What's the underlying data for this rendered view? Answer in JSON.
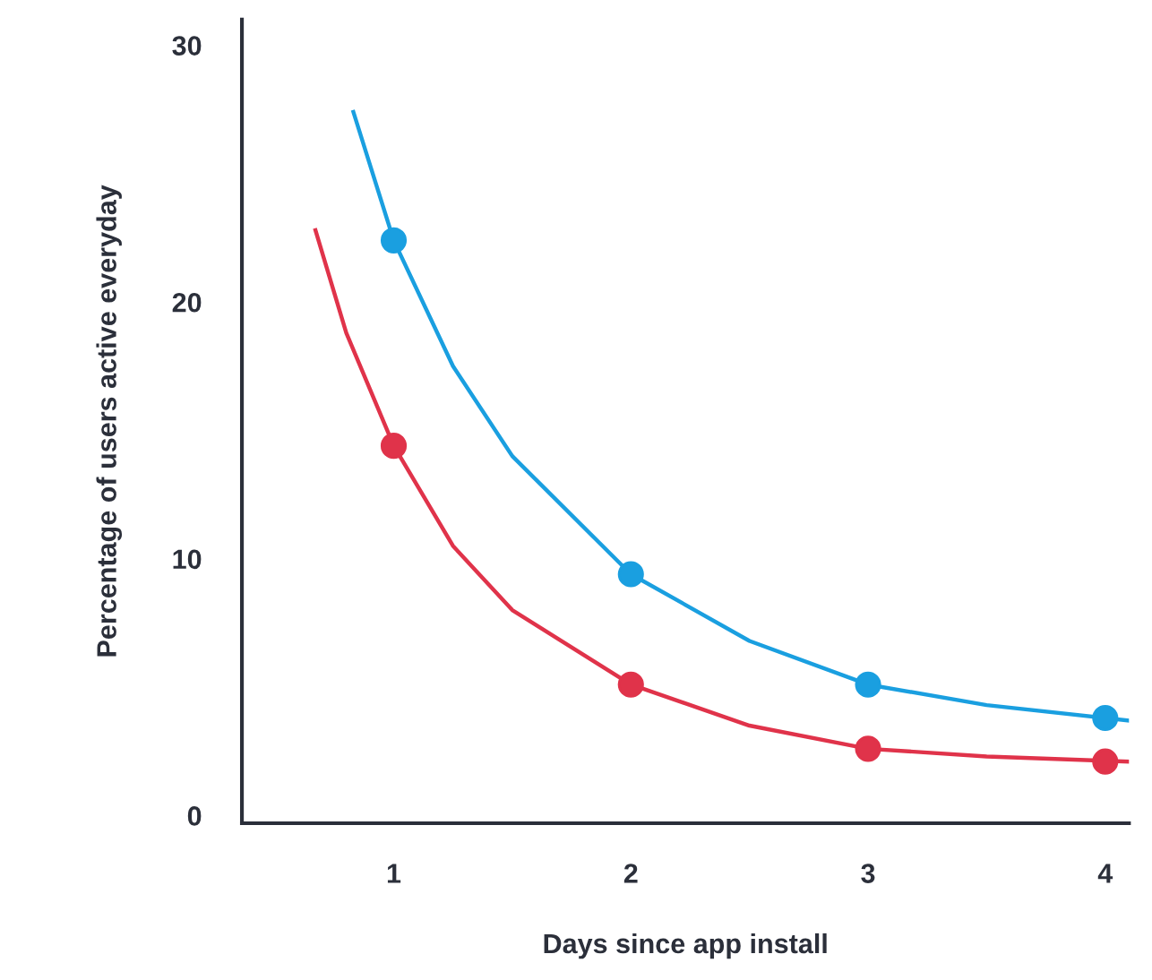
{
  "chart_data": {
    "type": "scatter",
    "xlabel": "Days since app install",
    "ylabel": "Percentage of users active everyday",
    "x": [
      1,
      2,
      3,
      4
    ],
    "xlim": [
      0.36,
      4.1
    ],
    "ylim": [
      -0.3,
      31
    ],
    "xticks": [
      1,
      2,
      3,
      4
    ],
    "yticks": [
      0,
      10,
      20,
      30
    ],
    "grid": false,
    "legend": false,
    "marker": "circle",
    "series": [
      {
        "type": "line",
        "marker": "none",
        "color": "#1a9fe0",
        "x": [
          0.83,
          1,
          1.25,
          1.5,
          2,
          2.5,
          3,
          3.5,
          4.1
        ],
        "values": [
          27.4,
          22.4,
          17.5,
          14,
          9.4,
          6.8,
          5.1,
          4.3,
          3.7
        ]
      },
      {
        "type": "line",
        "marker": "none",
        "color": "#e0334a",
        "x": [
          0.67,
          0.8,
          1,
          1.25,
          1.5,
          2,
          2.5,
          3,
          3.5,
          4.1
        ],
        "values": [
          22.8,
          18.8,
          14.4,
          10.5,
          8,
          5.1,
          3.5,
          2.6,
          2.3,
          2.1
        ]
      },
      {
        "color": "#1a9fe0",
        "values": [
          22.4,
          9.4,
          5.1,
          3.8
        ]
      },
      {
        "color": "#e0334a",
        "values": [
          14.4,
          5.1,
          2.6,
          2.1
        ]
      }
    ]
  }
}
